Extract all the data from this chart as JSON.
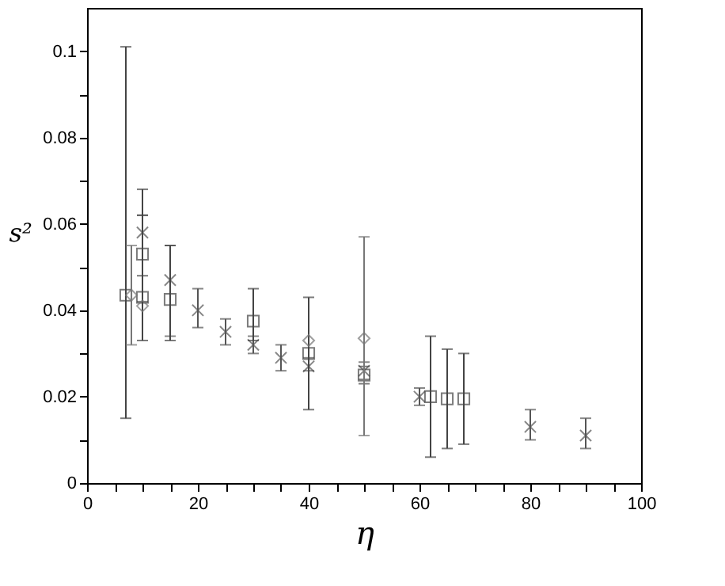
{
  "chart_data": {
    "type": "scatter",
    "xlabel": "η",
    "ylabel": "s²",
    "xlim": [
      0,
      100
    ],
    "ylim": [
      0,
      0.11
    ],
    "xticks": [
      0,
      {
        "value": 5,
        "label": null
      },
      {
        "value": 10,
        "label": null
      },
      {
        "value": 15,
        "label": null
      },
      20,
      {
        "value": 25,
        "label": null
      },
      {
        "value": 30,
        "label": null
      },
      {
        "value": 35,
        "label": null
      },
      40,
      {
        "value": 45,
        "label": null
      },
      {
        "value": 50,
        "label": null
      },
      {
        "value": 55,
        "label": null
      },
      60,
      {
        "value": 65,
        "label": null
      },
      {
        "value": 70,
        "label": null
      },
      {
        "value": 75,
        "label": null
      },
      80,
      {
        "value": 85,
        "label": null
      },
      {
        "value": 90,
        "label": null
      },
      {
        "value": 95,
        "label": null
      },
      100
    ],
    "yticks": [
      0,
      {
        "value": 0.01,
        "label": null
      },
      0.02,
      {
        "value": 0.03,
        "label": null
      },
      0.04,
      {
        "value": 0.05,
        "label": null
      },
      0.06,
      {
        "value": 0.07,
        "label": null
      },
      0.08,
      {
        "value": 0.09,
        "label": null
      },
      0.1
    ],
    "grid": false,
    "series": [
      {
        "color": "#555555",
        "marker": "cross",
        "x": [
          10,
          15,
          20,
          25,
          30,
          35,
          40,
          50,
          60,
          80,
          90
        ],
        "values": [
          0.058,
          0.047,
          0.04,
          0.035,
          0.032,
          0.029,
          0.027,
          0.026,
          0.02,
          0.013,
          0.011
        ],
        "errors": [
          [
            0.042,
            0.062
          ],
          [
            0.034,
            0.055
          ],
          [
            0.036,
            0.045
          ],
          [
            0.032,
            0.038
          ],
          [
            0.03,
            0.034
          ],
          [
            0.026,
            0.032
          ],
          [
            0.026,
            0.029
          ],
          [
            0.024,
            0.028
          ],
          [
            0.018,
            0.022
          ],
          [
            0.01,
            0.017
          ],
          [
            0.008,
            0.015
          ]
        ]
      },
      {
        "color": "#444444",
        "marker": "square",
        "x": [
          7,
          10,
          10,
          15,
          30,
          40,
          50,
          62,
          65,
          68
        ],
        "values": [
          0.0435,
          0.053,
          0.043,
          0.0425,
          0.0375,
          0.03,
          0.025,
          0.02,
          0.0195,
          0.0195
        ],
        "errors": [
          [
            0.015,
            0.101
          ],
          [
            0.048,
            0.068
          ],
          [
            0.033,
            0.062
          ],
          [
            0.033,
            0.055
          ],
          [
            0.033,
            0.045
          ],
          [
            0.017,
            0.043
          ],
          [
            0.023,
            0.027
          ],
          [
            0.006,
            0.034
          ],
          [
            0.008,
            0.031
          ],
          [
            0.009,
            0.03
          ]
        ]
      },
      {
        "color": "#777777",
        "marker": "diamond",
        "x": [
          8,
          10,
          40,
          50
        ],
        "values": [
          0.0435,
          0.041,
          0.033,
          0.0335
        ],
        "errors": [
          [
            0.032,
            0.055
          ],
          null,
          null,
          [
            0.011,
            0.057
          ]
        ]
      }
    ]
  }
}
